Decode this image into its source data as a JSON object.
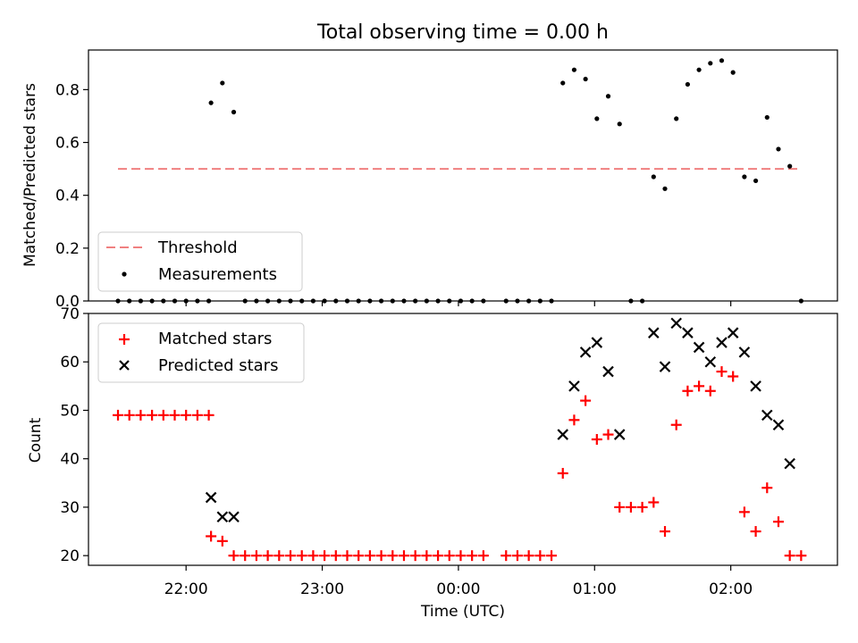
{
  "chart_data": [
    {
      "type": "scatter",
      "title": "Total observing time = 0.00 h",
      "xlabel": "",
      "ylabel": "Matched/Predicted stars",
      "ylim": [
        0,
        0.95
      ],
      "yticks": [
        "0.0",
        "0.2",
        "0.4",
        "0.6",
        "0.8"
      ],
      "grid": false,
      "legend": "lower-left",
      "threshold": {
        "name": "Threshold",
        "value": 0.5,
        "x_start": "21:30",
        "x_end": "02:30",
        "color": "#f08080",
        "style": "dashed"
      },
      "series": [
        {
          "name": "Measurements",
          "color": "#000000",
          "marker": "dot",
          "points": [
            [
              "21:30",
              0
            ],
            [
              "21:35",
              0
            ],
            [
              "21:40",
              0
            ],
            [
              "21:45",
              0
            ],
            [
              "21:50",
              0
            ],
            [
              "21:55",
              0
            ],
            [
              "22:00",
              0
            ],
            [
              "22:05",
              0
            ],
            [
              "22:10",
              0
            ],
            [
              "22:11",
              0.75
            ],
            [
              "22:16",
              0.825
            ],
            [
              "22:21",
              0.715
            ],
            [
              "22:26",
              0
            ],
            [
              "22:31",
              0
            ],
            [
              "22:36",
              0
            ],
            [
              "22:41",
              0
            ],
            [
              "22:46",
              0
            ],
            [
              "22:51",
              0
            ],
            [
              "22:56",
              0
            ],
            [
              "23:01",
              0
            ],
            [
              "23:06",
              0
            ],
            [
              "23:11",
              0
            ],
            [
              "23:16",
              0
            ],
            [
              "23:21",
              0
            ],
            [
              "23:26",
              0
            ],
            [
              "23:31",
              0
            ],
            [
              "23:36",
              0
            ],
            [
              "23:41",
              0
            ],
            [
              "23:46",
              0
            ],
            [
              "23:51",
              0
            ],
            [
              "23:56",
              0
            ],
            [
              "00:01",
              0
            ],
            [
              "00:06",
              0
            ],
            [
              "00:11",
              0
            ],
            [
              "00:21",
              0
            ],
            [
              "00:26",
              0
            ],
            [
              "00:31",
              0
            ],
            [
              "00:36",
              0
            ],
            [
              "00:41",
              0
            ],
            [
              "00:46",
              0.825
            ],
            [
              "00:51",
              0.875
            ],
            [
              "00:56",
              0.84
            ],
            [
              "01:01",
              0.69
            ],
            [
              "01:06",
              0.775
            ],
            [
              "01:11",
              0.67
            ],
            [
              "01:16",
              0
            ],
            [
              "01:21",
              0
            ],
            [
              "01:26",
              0.47
            ],
            [
              "01:31",
              0.425
            ],
            [
              "01:36",
              0.69
            ],
            [
              "01:41",
              0.82
            ],
            [
              "01:46",
              0.875
            ],
            [
              "01:51",
              0.9
            ],
            [
              "01:56",
              0.91
            ],
            [
              "02:01",
              0.865
            ],
            [
              "02:06",
              0.47
            ],
            [
              "02:11",
              0.455
            ],
            [
              "02:16",
              0.695
            ],
            [
              "02:21",
              0.575
            ],
            [
              "02:26",
              0.51
            ],
            [
              "02:31",
              0
            ]
          ]
        }
      ]
    },
    {
      "type": "scatter",
      "title": "",
      "xlabel": "Time (UTC)",
      "ylabel": "Count",
      "ylim": [
        18,
        70
      ],
      "yticks": [
        "20",
        "30",
        "40",
        "50",
        "60",
        "70"
      ],
      "xticks": [
        "22:00",
        "23:00",
        "00:00",
        "01:00",
        "02:00"
      ],
      "grid": false,
      "legend": "upper-left",
      "series": [
        {
          "name": "Matched stars",
          "color": "#ff0000",
          "marker": "plus",
          "points": [
            [
              "21:30",
              49
            ],
            [
              "21:35",
              49
            ],
            [
              "21:40",
              49
            ],
            [
              "21:45",
              49
            ],
            [
              "21:50",
              49
            ],
            [
              "21:55",
              49
            ],
            [
              "22:00",
              49
            ],
            [
              "22:05",
              49
            ],
            [
              "22:10",
              49
            ],
            [
              "22:11",
              24
            ],
            [
              "22:16",
              23
            ],
            [
              "22:21",
              20
            ],
            [
              "22:26",
              20
            ],
            [
              "22:31",
              20
            ],
            [
              "22:36",
              20
            ],
            [
              "22:41",
              20
            ],
            [
              "22:46",
              20
            ],
            [
              "22:51",
              20
            ],
            [
              "22:56",
              20
            ],
            [
              "23:01",
              20
            ],
            [
              "23:06",
              20
            ],
            [
              "23:11",
              20
            ],
            [
              "23:16",
              20
            ],
            [
              "23:21",
              20
            ],
            [
              "23:26",
              20
            ],
            [
              "23:31",
              20
            ],
            [
              "23:36",
              20
            ],
            [
              "23:41",
              20
            ],
            [
              "23:46",
              20
            ],
            [
              "23:51",
              20
            ],
            [
              "23:56",
              20
            ],
            [
              "00:01",
              20
            ],
            [
              "00:06",
              20
            ],
            [
              "00:11",
              20
            ],
            [
              "00:21",
              20
            ],
            [
              "00:26",
              20
            ],
            [
              "00:31",
              20
            ],
            [
              "00:36",
              20
            ],
            [
              "00:41",
              20
            ],
            [
              "00:46",
              37
            ],
            [
              "00:51",
              48
            ],
            [
              "00:56",
              52
            ],
            [
              "01:01",
              44
            ],
            [
              "01:06",
              45
            ],
            [
              "01:11",
              30
            ],
            [
              "01:16",
              30
            ],
            [
              "01:21",
              30
            ],
            [
              "01:26",
              31
            ],
            [
              "01:31",
              25
            ],
            [
              "01:36",
              47
            ],
            [
              "01:41",
              54
            ],
            [
              "01:46",
              55
            ],
            [
              "01:51",
              54
            ],
            [
              "01:56",
              58
            ],
            [
              "02:01",
              57
            ],
            [
              "02:06",
              29
            ],
            [
              "02:11",
              25
            ],
            [
              "02:16",
              34
            ],
            [
              "02:21",
              27
            ],
            [
              "02:26",
              20
            ],
            [
              "02:31",
              20
            ]
          ]
        },
        {
          "name": "Predicted stars",
          "color": "#000000",
          "marker": "x",
          "points": [
            [
              "22:11",
              32
            ],
            [
              "22:16",
              28
            ],
            [
              "22:21",
              28
            ],
            [
              "00:46",
              45
            ],
            [
              "00:51",
              55
            ],
            [
              "00:56",
              62
            ],
            [
              "01:01",
              64
            ],
            [
              "01:06",
              58
            ],
            [
              "01:11",
              45
            ],
            [
              "01:26",
              66
            ],
            [
              "01:31",
              59
            ],
            [
              "01:36",
              68
            ],
            [
              "01:41",
              66
            ],
            [
              "01:46",
              63
            ],
            [
              "01:51",
              60
            ],
            [
              "01:56",
              64
            ],
            [
              "02:01",
              66
            ],
            [
              "02:06",
              62
            ],
            [
              "02:11",
              55
            ],
            [
              "02:16",
              49
            ],
            [
              "02:21",
              47
            ],
            [
              "02:26",
              39
            ]
          ]
        }
      ]
    }
  ]
}
